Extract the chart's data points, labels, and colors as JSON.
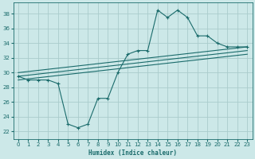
{
  "xlabel": "Humidex (Indice chaleur)",
  "bg_color": "#cce8e8",
  "grid_color": "#aacccc",
  "line_color": "#1a6b6b",
  "xlim": [
    -0.5,
    23.5
  ],
  "ylim": [
    21.0,
    39.5
  ],
  "xticks": [
    0,
    1,
    2,
    3,
    4,
    5,
    6,
    7,
    8,
    9,
    10,
    11,
    12,
    13,
    14,
    15,
    16,
    17,
    18,
    19,
    20,
    21,
    22,
    23
  ],
  "yticks": [
    22,
    24,
    26,
    28,
    30,
    32,
    34,
    36,
    38
  ],
  "main_line_x": [
    0,
    1,
    2,
    3,
    4,
    5,
    6,
    7,
    8,
    9,
    10,
    11,
    12,
    13,
    14,
    15,
    16,
    17,
    18,
    19,
    20,
    21,
    22,
    23
  ],
  "main_line_y": [
    29.5,
    29.0,
    29.0,
    29.0,
    28.5,
    23.0,
    22.5,
    23.0,
    26.5,
    26.5,
    30.0,
    32.5,
    33.0,
    33.0,
    38.5,
    37.5,
    38.5,
    37.5,
    35.0,
    35.0,
    34.0,
    33.5,
    33.5,
    33.5
  ],
  "trend1_x": [
    0,
    23
  ],
  "trend1_y": [
    29.0,
    32.5
  ],
  "trend2_x": [
    0,
    23
  ],
  "trend2_y": [
    29.5,
    33.0
  ],
  "trend3_x": [
    0,
    23
  ],
  "trend3_y": [
    30.0,
    33.5
  ]
}
